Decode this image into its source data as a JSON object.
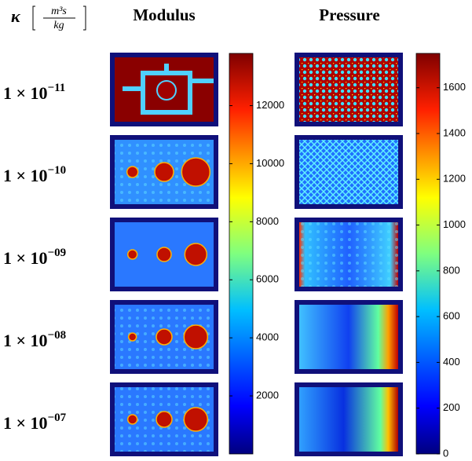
{
  "header": {
    "kappa_symbol": "κ",
    "unit_numerator": "m³s",
    "unit_denominator": "kg"
  },
  "columns": [
    "Modulus",
    "Pressure"
  ],
  "rows": [
    {
      "label": "1 × 10",
      "exponent": "−11"
    },
    {
      "label": "1 × 10",
      "exponent": "−10"
    },
    {
      "label": "1 × 10",
      "exponent": "−09"
    },
    {
      "label": "1 × 10",
      "exponent": "−08"
    },
    {
      "label": "1 × 10",
      "exponent": "−07"
    }
  ],
  "colorbars": [
    {
      "lim": [
        0,
        13800
      ],
      "ticks": [
        2000,
        4000,
        6000,
        8000,
        10000,
        12000
      ]
    },
    {
      "lim": [
        0,
        1750
      ],
      "ticks": [
        0,
        200,
        400,
        600,
        800,
        1000,
        1200,
        1400,
        1600
      ]
    }
  ]
}
